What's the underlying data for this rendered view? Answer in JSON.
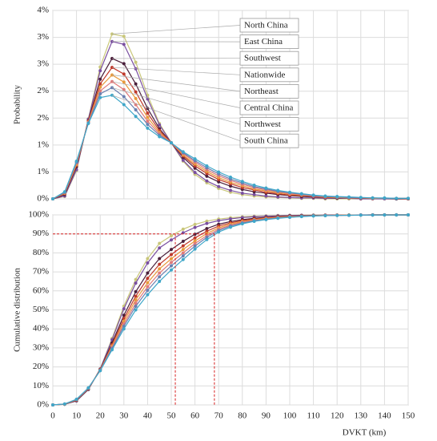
{
  "chart_data": [
    {
      "type": "line",
      "ylabel": "Probability",
      "x": [
        0,
        5,
        10,
        15,
        20,
        25,
        30,
        35,
        40,
        45,
        50,
        55,
        60,
        65,
        70,
        75,
        80,
        85,
        90,
        95,
        100,
        105,
        110,
        115,
        120,
        125,
        130,
        135,
        140,
        145,
        150
      ],
      "xlim": [
        0,
        150
      ],
      "xticks": [
        0,
        10,
        20,
        30,
        40,
        50,
        60,
        70,
        80,
        90,
        100,
        110,
        120,
        130,
        140,
        150
      ],
      "ylim": [
        0,
        4
      ],
      "yticks": [
        {
          "value": 0,
          "label": "0%"
        },
        {
          "value": 0.5714,
          "label": "1%"
        },
        {
          "value": 1.1429,
          "label": "1%"
        },
        {
          "value": 1.7143,
          "label": "2%"
        },
        {
          "value": 2.2857,
          "label": "2%"
        },
        {
          "value": 2.8571,
          "label": "3%"
        },
        {
          "value": 3.4286,
          "label": "3%"
        },
        {
          "value": 4,
          "label": "4%"
        }
      ],
      "grid": true,
      "series": [
        {
          "name": "North China",
          "color": "#c9c77a",
          "values": [
            0,
            0.05,
            0.6,
            1.7,
            2.8,
            3.5,
            3.45,
            2.9,
            2.2,
            1.6,
            1.19,
            0.8,
            0.52,
            0.34,
            0.22,
            0.14,
            0.09,
            0.06,
            0.04,
            0.03,
            0.02,
            0.01,
            0.01,
            0,
            0,
            0,
            0,
            0,
            0,
            0,
            0
          ]
        },
        {
          "name": "East China",
          "color": "#7a4fa0",
          "values": [
            0,
            0.06,
            0.62,
            1.69,
            2.72,
            3.34,
            3.28,
            2.76,
            2.12,
            1.57,
            1.19,
            0.82,
            0.56,
            0.38,
            0.26,
            0.18,
            0.12,
            0.09,
            0.06,
            0.04,
            0.03,
            0.02,
            0.02,
            0.01,
            0.01,
            0.01,
            0,
            0,
            0,
            0,
            0
          ]
        },
        {
          "name": "Southwest",
          "color": "#4a1f3a",
          "values": [
            0,
            0.09,
            0.68,
            1.66,
            2.54,
            2.98,
            2.87,
            2.44,
            1.92,
            1.49,
            1.19,
            0.88,
            0.65,
            0.48,
            0.36,
            0.27,
            0.2,
            0.15,
            0.12,
            0.09,
            0.07,
            0.05,
            0.04,
            0.03,
            0.02,
            0.02,
            0.01,
            0.01,
            0.01,
            0,
            0
          ]
        },
        {
          "name": "Nationwide",
          "color": "#c0392b",
          "values": [
            0,
            0.11,
            0.71,
            1.65,
            2.44,
            2.79,
            2.65,
            2.27,
            1.82,
            1.45,
            1.19,
            0.91,
            0.7,
            0.54,
            0.41,
            0.32,
            0.24,
            0.19,
            0.14,
            0.11,
            0.08,
            0.07,
            0.05,
            0.03,
            0.03,
            0.02,
            0.01,
            0.01,
            0.01,
            0.01,
            0
          ]
        },
        {
          "name": "Northeast",
          "color": "#e89a3c",
          "values": [
            0,
            0.12,
            0.73,
            1.63,
            2.37,
            2.63,
            2.48,
            2.13,
            1.73,
            1.41,
            1.19,
            0.93,
            0.74,
            0.58,
            0.45,
            0.35,
            0.28,
            0.21,
            0.17,
            0.13,
            0.1,
            0.08,
            0.06,
            0.04,
            0.03,
            0.02,
            0.02,
            0.01,
            0.01,
            0.01,
            0.01
          ]
        },
        {
          "name": "Central China",
          "color": "#e07a7a",
          "values": [
            0,
            0.13,
            0.76,
            1.62,
            2.29,
            2.49,
            2.32,
            2.0,
            1.65,
            1.38,
            1.19,
            0.96,
            0.78,
            0.62,
            0.49,
            0.39,
            0.31,
            0.24,
            0.19,
            0.15,
            0.11,
            0.09,
            0.06,
            0.05,
            0.04,
            0.03,
            0.02,
            0.02,
            0.01,
            0.01,
            0.01
          ]
        },
        {
          "name": "Northwest",
          "color": "#6a7fb0",
          "values": [
            0,
            0.14,
            0.78,
            1.61,
            2.23,
            2.36,
            2.17,
            1.89,
            1.58,
            1.35,
            1.19,
            0.98,
            0.81,
            0.66,
            0.53,
            0.42,
            0.34,
            0.26,
            0.21,
            0.16,
            0.13,
            0.1,
            0.07,
            0.05,
            0.04,
            0.03,
            0.02,
            0.02,
            0.01,
            0.01,
            0.01
          ]
        },
        {
          "name": "South China",
          "color": "#3fa7c9",
          "values": [
            0,
            0.15,
            0.8,
            1.6,
            2.15,
            2.2,
            2.0,
            1.75,
            1.5,
            1.32,
            1.19,
            1.0,
            0.85,
            0.7,
            0.57,
            0.46,
            0.37,
            0.29,
            0.23,
            0.18,
            0.14,
            0.11,
            0.08,
            0.06,
            0.05,
            0.04,
            0.03,
            0.02,
            0.02,
            0.01,
            0.01
          ]
        }
      ]
    },
    {
      "type": "line",
      "ylabel": "Cumulative distribution",
      "xlabel": "DVKT (km)",
      "x": [
        0,
        5,
        10,
        15,
        20,
        25,
        30,
        35,
        40,
        45,
        50,
        55,
        60,
        65,
        70,
        75,
        80,
        85,
        90,
        95,
        100,
        105,
        110,
        115,
        120,
        125,
        130,
        135,
        140,
        145,
        150
      ],
      "xlim": [
        0,
        150
      ],
      "xticks": [
        0,
        10,
        20,
        30,
        40,
        50,
        60,
        70,
        80,
        90,
        100,
        110,
        120,
        130,
        140,
        150
      ],
      "ylim": [
        0,
        100
      ],
      "yticks": [
        {
          "value": 0,
          "label": "0%"
        },
        {
          "value": 10,
          "label": "10%"
        },
        {
          "value": 20,
          "label": "20%"
        },
        {
          "value": 30,
          "label": "30%"
        },
        {
          "value": 40,
          "label": "40%"
        },
        {
          "value": 50,
          "label": "50%"
        },
        {
          "value": 60,
          "label": "60%"
        },
        {
          "value": 70,
          "label": "70%"
        },
        {
          "value": 80,
          "label": "80%"
        },
        {
          "value": 90,
          "label": "90%"
        },
        {
          "value": 100,
          "label": "100%"
        }
      ],
      "grid": true,
      "reference_lines": {
        "y": 90,
        "x": [
          51.7,
          68.2
        ],
        "color": "#d62020"
      },
      "series": [
        {
          "color": "#c9c77a",
          "values": [
            0,
            0.3,
            2,
            8,
            19,
            35,
            52,
            66,
            77,
            85,
            89,
            92.5,
            95,
            96.7,
            97.8,
            98.5,
            99,
            99.3,
            99.5,
            99.7,
            99.8,
            99.85,
            99.9,
            99.93,
            99.95,
            99.97,
            99.98,
            99.99,
            100,
            100,
            100
          ]
        },
        {
          "color": "#7a4fa0",
          "values": [
            0,
            0.3,
            2.1,
            8.1,
            18.9,
            34.3,
            50.6,
            64.1,
            74.7,
            82.6,
            86.8,
            90.6,
            93.4,
            95.5,
            97.0,
            97.9,
            98.6,
            99.0,
            99.3,
            99.5,
            99.7,
            99.8,
            99.8,
            99.9,
            99.9,
            99.9,
            100,
            100,
            100,
            100,
            100
          ]
        },
        {
          "color": "#4a1f3a",
          "values": [
            0,
            0.4,
            2.4,
            8.4,
            18.6,
            32.6,
            47.2,
            59.6,
            69.4,
            77.0,
            81.8,
            86.1,
            89.8,
            92.8,
            95.1,
            96.5,
            97.5,
            98.2,
            98.7,
            99.1,
            99.4,
            99.6,
            99.7,
            99.8,
            99.9,
            99.9,
            99.9,
            100,
            100,
            100,
            100
          ]
        },
        {
          "color": "#c0392b",
          "values": [
            0,
            0.4,
            2.6,
            8.6,
            18.5,
            31.7,
            45.4,
            57.2,
            66.6,
            74.0,
            79.1,
            83.7,
            87.9,
            91.4,
            94.1,
            95.8,
            97.0,
            97.8,
            98.4,
            98.9,
            99.2,
            99.4,
            99.6,
            99.8,
            99.8,
            99.9,
            99.9,
            100,
            100,
            100,
            100
          ]
        },
        {
          "color": "#e89a3c",
          "values": [
            0,
            0.4,
            2.7,
            8.7,
            18.3,
            31.0,
            44.0,
            55.3,
            64.3,
            71.6,
            76.9,
            81.8,
            86.3,
            90.2,
            93.2,
            95.2,
            96.5,
            97.5,
            98.2,
            98.7,
            99.1,
            99.4,
            99.6,
            99.7,
            99.8,
            99.9,
            99.9,
            99.9,
            100,
            100,
            100
          ]
        },
        {
          "color": "#e07a7a",
          "values": [
            0,
            0.5,
            2.8,
            8.8,
            18.2,
            30.3,
            42.6,
            53.5,
            62.2,
            69.4,
            75.0,
            80.0,
            84.9,
            89.1,
            92.5,
            94.6,
            96.1,
            97.2,
            97.9,
            98.5,
            98.9,
            99.3,
            99.5,
            99.7,
            99.8,
            99.8,
            99.9,
            99.9,
            100,
            100,
            100
          ]
        },
        {
          "color": "#6a7fb0",
          "values": [
            0,
            0.5,
            2.9,
            8.9,
            18.1,
            29.7,
            41.4,
            51.9,
            60.3,
            67.4,
            73.2,
            78.4,
            83.6,
            88.2,
            91.8,
            94.1,
            95.7,
            96.9,
            97.7,
            98.4,
            98.8,
            99.2,
            99.5,
            99.6,
            99.7,
            99.8,
            99.9,
            99.9,
            100,
            100,
            100
          ]
        },
        {
          "color": "#3fa7c9",
          "values": [
            0,
            0.5,
            3,
            9,
            18,
            29,
            40,
            50,
            58,
            65,
            71,
            76.5,
            82,
            87,
            91,
            93.5,
            95.3,
            96.6,
            97.5,
            98.2,
            98.7,
            99.1,
            99.4,
            99.6,
            99.7,
            99.8,
            99.87,
            99.92,
            99.95,
            99.97,
            100
          ]
        }
      ]
    }
  ]
}
